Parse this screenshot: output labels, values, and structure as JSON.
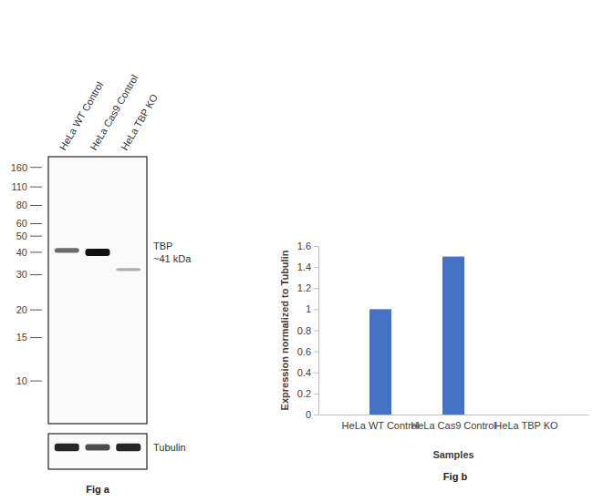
{
  "figure_a": {
    "caption": "Fig a",
    "lanes": [
      "HeLa WT Control",
      "HeLa Cas9 Control",
      "HeLa TBP KO"
    ],
    "markers": [
      160,
      110,
      80,
      60,
      50,
      40,
      30,
      20,
      15,
      10
    ],
    "kda_range": [
      200,
      7
    ],
    "target": {
      "name": "TBP",
      "size": "~41 kDa"
    },
    "bands": [
      {
        "lane": 0,
        "kda": 41,
        "signal": 0.55
      },
      {
        "lane": 1,
        "kda": 40,
        "signal": 1.0
      },
      {
        "lane": 2,
        "kda": 32,
        "signal": 0.2
      }
    ],
    "loading_control": {
      "name": "Tubulin",
      "signals": [
        0.9,
        0.7,
        0.9
      ]
    }
  },
  "chart_data": {
    "type": "bar",
    "caption": "Fig b",
    "categories": [
      "HeLa WT Control",
      "HeLa Cas9 Control",
      "HeLa TBP KO"
    ],
    "values": [
      1,
      1.5,
      0
    ],
    "color": "#4472c4",
    "xlabel": "Samples",
    "ylabel": "Expression normalized to Tubulin",
    "ylim": [
      0,
      1.6
    ],
    "yticks": [
      0,
      0.2,
      0.4,
      0.6,
      0.8,
      1,
      1.2,
      1.4,
      1.6
    ],
    "grid": false
  }
}
